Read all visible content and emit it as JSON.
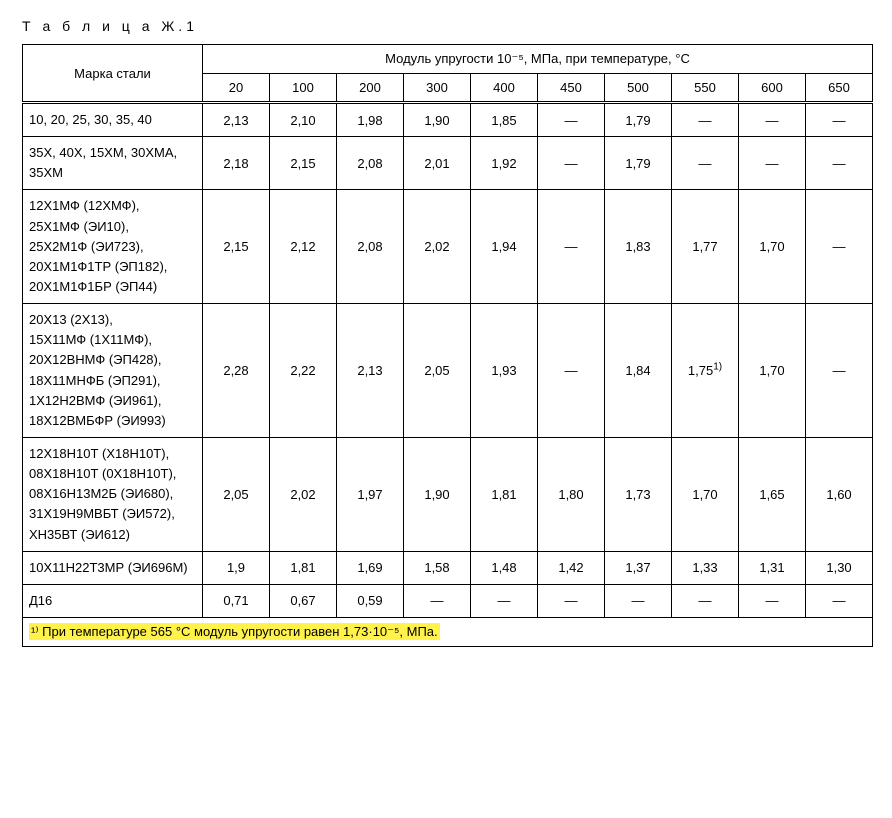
{
  "caption": "Т а б л и ц а Ж.1",
  "header": {
    "steel_grade": "Марка стали",
    "modulus_title": "Модуль упругости 10⁻⁵, МПа, при температуре, °C",
    "temps": [
      "20",
      "100",
      "200",
      "300",
      "400",
      "450",
      "500",
      "550",
      "600",
      "650"
    ]
  },
  "rows": [
    {
      "steel": "10, 20, 25, 30, 35, 40",
      "vals": [
        "2,13",
        "2,10",
        "1,98",
        "1,90",
        "1,85",
        "—",
        "1,79",
        "—",
        "—",
        "—"
      ]
    },
    {
      "steel": "35Х, 40Х, 15ХМ, 30ХМА, 35ХМ",
      "vals": [
        "2,18",
        "2,15",
        "2,08",
        "2,01",
        "1,92",
        "—",
        "1,79",
        "—",
        "—",
        "—"
      ]
    },
    {
      "steel": "12Х1МФ (12ХМФ),\n25Х1МФ (ЭИ10),\n25Х2М1Ф (ЭИ723),\n20Х1М1Ф1ТР (ЭП182),\n20Х1М1Ф1БР (ЭП44)",
      "vals": [
        "2,15",
        "2,12",
        "2,08",
        "2,02",
        "1,94",
        "—",
        "1,83",
        "1,77",
        "1,70",
        "—"
      ]
    },
    {
      "steel": "20Х13 (2Х13),\n15Х11МФ (1Х11МФ),\n20Х12ВНМФ (ЭП428),\n18Х11МНФБ (ЭП291),\n1Х12Н2ВМФ (ЭИ961),\n18Х12ВМБФР (ЭИ993)",
      "vals": [
        "2,28",
        "2,22",
        "2,13",
        "2,05",
        "1,93",
        "—",
        "1,84",
        "1,75¹⁾",
        "1,70",
        "—"
      ]
    },
    {
      "steel": "12Х18Н10Т (Х18Н10Т),\n08Х18Н10Т (0Х18Н10Т),\n08Х16Н13М2Б (ЭИ680),\n31Х19Н9МВБТ (ЭИ572),\nХН35ВТ (ЭИ612)",
      "vals": [
        "2,05",
        "2,02",
        "1,97",
        "1,90",
        "1,81",
        "1,80",
        "1,73",
        "1,70",
        "1,65",
        "1,60"
      ]
    },
    {
      "steel": "10Х11Н22Т3МР (ЭИ696М)",
      "vals": [
        "1,9",
        "1,81",
        "1,69",
        "1,58",
        "1,48",
        "1,42",
        "1,37",
        "1,33",
        "1,31",
        "1,30"
      ]
    },
    {
      "steel": "Д16",
      "vals": [
        "0,71",
        "0,67",
        "0,59",
        "—",
        "—",
        "—",
        "—",
        "—",
        "—",
        "—"
      ]
    }
  ],
  "footnote": "¹⁾ При температуре 565 °C модуль упругости равен 1,73·10⁻⁵, МПа."
}
